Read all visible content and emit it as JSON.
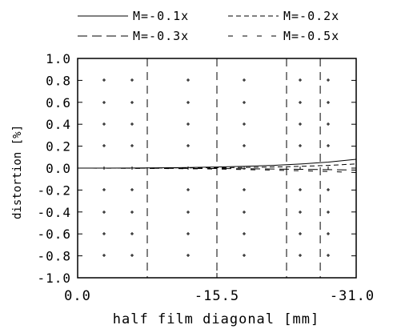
{
  "chart_data": {
    "type": "line",
    "title": "",
    "xlabel": "half film diagonal [mm]",
    "ylabel": "distortion [%]",
    "xlim": [
      0,
      -31.0
    ],
    "ylim": [
      -1.0,
      1.0
    ],
    "x_tick_labels": [
      {
        "value": 0,
        "label": "0.0"
      },
      {
        "value": -15.5,
        "label": "-15.5"
      },
      {
        "value": -31.0,
        "label": "-31.0"
      }
    ],
    "y_tick_labels": [
      "1.0",
      "0.8",
      "0.6",
      "0.4",
      "0.2",
      "0.0",
      "-0.2",
      "-0.4",
      "-0.6",
      "-0.8",
      "-1.0"
    ],
    "y_tick_values": [
      1.0,
      0.8,
      0.6,
      0.4,
      0.2,
      0.0,
      -0.2,
      -0.4,
      -0.6,
      -0.8,
      -1.0
    ],
    "legend_position": "top",
    "grid": "dotted marks",
    "series": [
      {
        "name": "M=-0.1x",
        "style": "solid",
        "x": [
          0,
          -3.1,
          -6.2,
          -9.3,
          -12.4,
          -15.5,
          -18.6,
          -21.7,
          -24.8,
          -27.9,
          -31.0
        ],
        "values": [
          0,
          0.0,
          0.001,
          0.003,
          0.006,
          0.01,
          0.016,
          0.025,
          0.037,
          0.055,
          0.08
        ]
      },
      {
        "name": "M=-0.2x",
        "style": "dashed-short",
        "x": [
          0,
          -3.1,
          -6.2,
          -9.3,
          -12.4,
          -15.5,
          -18.6,
          -21.7,
          -24.8,
          -27.9,
          -31.0
        ],
        "values": [
          0,
          0.0,
          0.0,
          0.001,
          0.002,
          0.004,
          0.006,
          0.01,
          0.016,
          0.025,
          0.038
        ]
      },
      {
        "name": "M=-0.3x",
        "style": "dashed-long",
        "x": [
          0,
          -3.1,
          -6.2,
          -9.3,
          -12.4,
          -15.5,
          -18.6,
          -21.7,
          -24.8,
          -27.9,
          -31.0
        ],
        "values": [
          0,
          0.0,
          -0.001,
          -0.002,
          -0.003,
          -0.004,
          -0.006,
          -0.008,
          -0.011,
          -0.014,
          -0.018
        ]
      },
      {
        "name": "M=-0.5x",
        "style": "dashed-sparse",
        "x": [
          0,
          -3.1,
          -6.2,
          -9.3,
          -12.4,
          -15.5,
          -18.6,
          -21.7,
          -24.8,
          -27.9,
          -31.0
        ],
        "values": [
          0,
          -0.001,
          -0.002,
          -0.004,
          -0.006,
          -0.009,
          -0.013,
          -0.018,
          -0.024,
          -0.031,
          -0.04
        ]
      }
    ],
    "vertical_dashed_lines_x": [
      -7.75,
      -15.5,
      -23.25,
      -27.0
    ]
  }
}
